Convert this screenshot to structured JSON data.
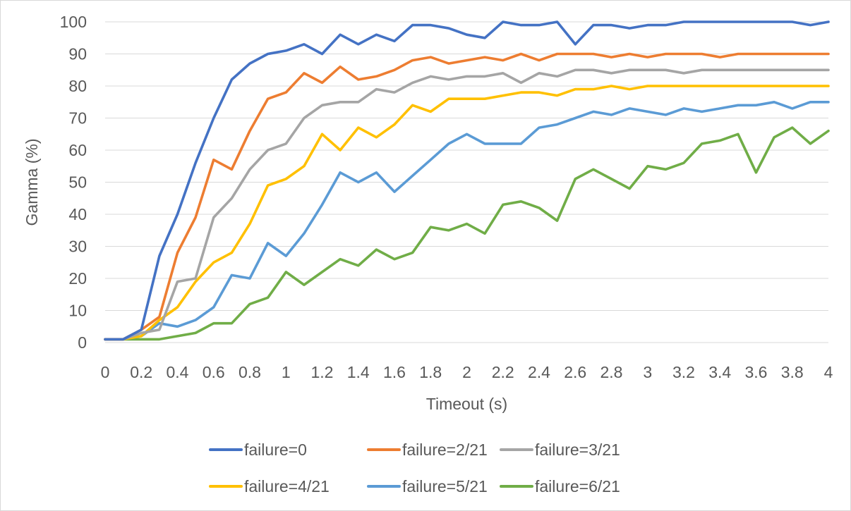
{
  "chart_data": {
    "type": "line",
    "xlabel": "Timeout (s)",
    "ylabel": "Gamma (%)",
    "xlim": [
      0,
      4
    ],
    "ylim": [
      0,
      100
    ],
    "x_ticks": [
      "0",
      "0.2",
      "0.4",
      "0.6",
      "0.8",
      "1",
      "1.2",
      "1.4",
      "1.6",
      "1.8",
      "2",
      "2.2",
      "2.4",
      "2.6",
      "2.8",
      "3",
      "3.2",
      "3.4",
      "3.6",
      "3.8",
      "4"
    ],
    "y_ticks": [
      "0",
      "10",
      "20",
      "30",
      "40",
      "50",
      "60",
      "70",
      "80",
      "90",
      "100"
    ],
    "grid": "horizontal",
    "legend_position": "bottom",
    "x": [
      0,
      0.1,
      0.2,
      0.3,
      0.4,
      0.5,
      0.6,
      0.7,
      0.8,
      0.9,
      1,
      1.1,
      1.2,
      1.3,
      1.4,
      1.5,
      1.6,
      1.7,
      1.8,
      1.9,
      2,
      2.1,
      2.2,
      2.3,
      2.4,
      2.5,
      2.6,
      2.7,
      2.8,
      2.9,
      3,
      3.1,
      3.2,
      3.3,
      3.4,
      3.5,
      3.6,
      3.7,
      3.8,
      3.9,
      4
    ],
    "series": [
      {
        "name": "failure=0",
        "color": "#4472c4",
        "values": [
          1,
          1,
          4,
          27,
          40,
          56,
          70,
          82,
          87,
          90,
          91,
          93,
          90,
          96,
          93,
          96,
          94,
          99,
          99,
          98,
          96,
          95,
          100,
          99,
          99,
          100,
          93,
          99,
          99,
          98,
          99,
          99,
          100,
          100,
          100,
          100,
          100,
          100,
          100,
          99,
          100
        ]
      },
      {
        "name": "failure=2/21",
        "color": "#ed7d31",
        "values": [
          1,
          1,
          4,
          8,
          28,
          39,
          57,
          54,
          66,
          76,
          78,
          84,
          81,
          86,
          82,
          83,
          85,
          88,
          89,
          87,
          88,
          89,
          88,
          90,
          88,
          90,
          90,
          90,
          89,
          90,
          89,
          90,
          90,
          90,
          89,
          90,
          90,
          90,
          90,
          90,
          90
        ]
      },
      {
        "name": "failure=3/21",
        "color": "#a5a5a5",
        "values": [
          1,
          1,
          3,
          4,
          19,
          20,
          39,
          45,
          54,
          60,
          62,
          70,
          74,
          75,
          75,
          79,
          78,
          81,
          83,
          82,
          83,
          83,
          84,
          81,
          84,
          83,
          85,
          85,
          84,
          85,
          85,
          85,
          84,
          85,
          85,
          85,
          85,
          85,
          85,
          85,
          85
        ]
      },
      {
        "name": "failure=4/21",
        "color": "#ffc000",
        "values": [
          1,
          1,
          2,
          7,
          11,
          19,
          25,
          28,
          37,
          49,
          51,
          55,
          65,
          60,
          67,
          64,
          68,
          74,
          72,
          76,
          76,
          76,
          77,
          78,
          78,
          77,
          79,
          79,
          80,
          79,
          80,
          80,
          80,
          80,
          80,
          80,
          80,
          80,
          80,
          80,
          80
        ]
      },
      {
        "name": "failure=5/21",
        "color": "#5b9bd5",
        "values": [
          1,
          1,
          2,
          6,
          5,
          7,
          11,
          21,
          20,
          31,
          27,
          34,
          43,
          53,
          50,
          53,
          47,
          52,
          57,
          62,
          65,
          62,
          62,
          62,
          67,
          68,
          70,
          72,
          71,
          73,
          72,
          71,
          73,
          72,
          73,
          74,
          74,
          75,
          73,
          75,
          75
        ]
      },
      {
        "name": "failure=6/21",
        "color": "#70ad47",
        "values": [
          1,
          1,
          1,
          1,
          2,
          3,
          6,
          6,
          12,
          14,
          22,
          18,
          22,
          26,
          24,
          29,
          26,
          28,
          36,
          35,
          37,
          34,
          43,
          44,
          42,
          38,
          51,
          54,
          51,
          48,
          55,
          54,
          56,
          62,
          63,
          65,
          53,
          64,
          67,
          62,
          66
        ]
      }
    ]
  }
}
